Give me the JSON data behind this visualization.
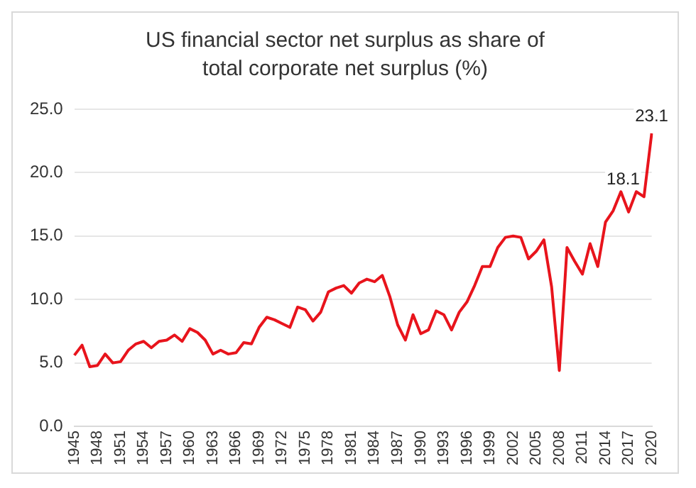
{
  "chart_data": {
    "type": "line",
    "title": "US financial sector net surplus as share of total corporate net surplus (%)",
    "categories": [
      "1945",
      null,
      null,
      "1948",
      null,
      null,
      "1951",
      null,
      null,
      "1954",
      null,
      null,
      "1957",
      null,
      null,
      "1960",
      null,
      null,
      "1963",
      null,
      null,
      "1966",
      null,
      null,
      "1969",
      null,
      null,
      "1972",
      null,
      null,
      "1975",
      null,
      null,
      "1978",
      null,
      null,
      "1981",
      null,
      null,
      "1984",
      null,
      null,
      "1987",
      null,
      null,
      "1990",
      null,
      null,
      "1993",
      null,
      null,
      "1996",
      null,
      null,
      "1999",
      null,
      null,
      "2002",
      null,
      null,
      "2005",
      null,
      null,
      "2008",
      null,
      null,
      "2011",
      null,
      null,
      "2014",
      null,
      null,
      "2017",
      null,
      null,
      "2020"
    ],
    "series": [
      {
        "color": "#e8141c",
        "values": [
          5.6,
          6.4,
          4.7,
          4.8,
          5.7,
          5.0,
          5.1,
          6.0,
          6.5,
          6.7,
          6.2,
          6.7,
          6.8,
          7.2,
          6.7,
          7.7,
          7.4,
          6.8,
          5.7,
          6.0,
          5.7,
          5.8,
          6.6,
          6.5,
          7.8,
          8.6,
          8.4,
          8.1,
          7.8,
          9.4,
          9.2,
          8.3,
          9.0,
          10.6,
          10.9,
          11.1,
          10.5,
          11.3,
          11.6,
          11.4,
          11.9,
          10.2,
          8.0,
          6.8,
          8.8,
          7.3,
          7.6,
          9.1,
          8.8,
          7.6,
          9.0,
          9.8,
          11.1,
          12.6,
          12.6,
          14.1,
          14.9,
          15.0,
          14.9,
          13.2,
          13.8,
          14.7,
          11.0,
          4.4,
          14.1,
          13.0,
          12.0,
          14.4,
          12.6,
          16.1,
          17.0,
          18.5,
          16.9,
          18.5,
          18.1,
          23.1
        ],
        "value_labels": [
          null,
          null,
          null,
          null,
          null,
          null,
          null,
          null,
          null,
          null,
          null,
          null,
          null,
          null,
          null,
          null,
          null,
          null,
          null,
          null,
          null,
          null,
          null,
          null,
          null,
          null,
          null,
          null,
          null,
          null,
          null,
          null,
          null,
          null,
          null,
          null,
          null,
          null,
          null,
          null,
          null,
          null,
          null,
          null,
          null,
          null,
          null,
          null,
          null,
          null,
          null,
          null,
          null,
          null,
          null,
          null,
          null,
          null,
          null,
          null,
          null,
          null,
          null,
          null,
          null,
          null,
          null,
          null,
          null,
          null,
          null,
          null,
          null,
          null,
          "18.1",
          "23.1"
        ]
      }
    ],
    "ylim": [
      0,
      25
    ],
    "yticks": [
      {
        "value": 0,
        "label": "0.0"
      },
      {
        "value": 5,
        "label": "5.0"
      },
      {
        "value": 10,
        "label": "10.0"
      },
      {
        "value": 15,
        "label": "15.0"
      },
      {
        "value": 20,
        "label": "20.0"
      },
      {
        "value": 25,
        "label": "25.0"
      }
    ],
    "grid": "y",
    "legend": false,
    "marker": "none",
    "line_style": "solid"
  }
}
